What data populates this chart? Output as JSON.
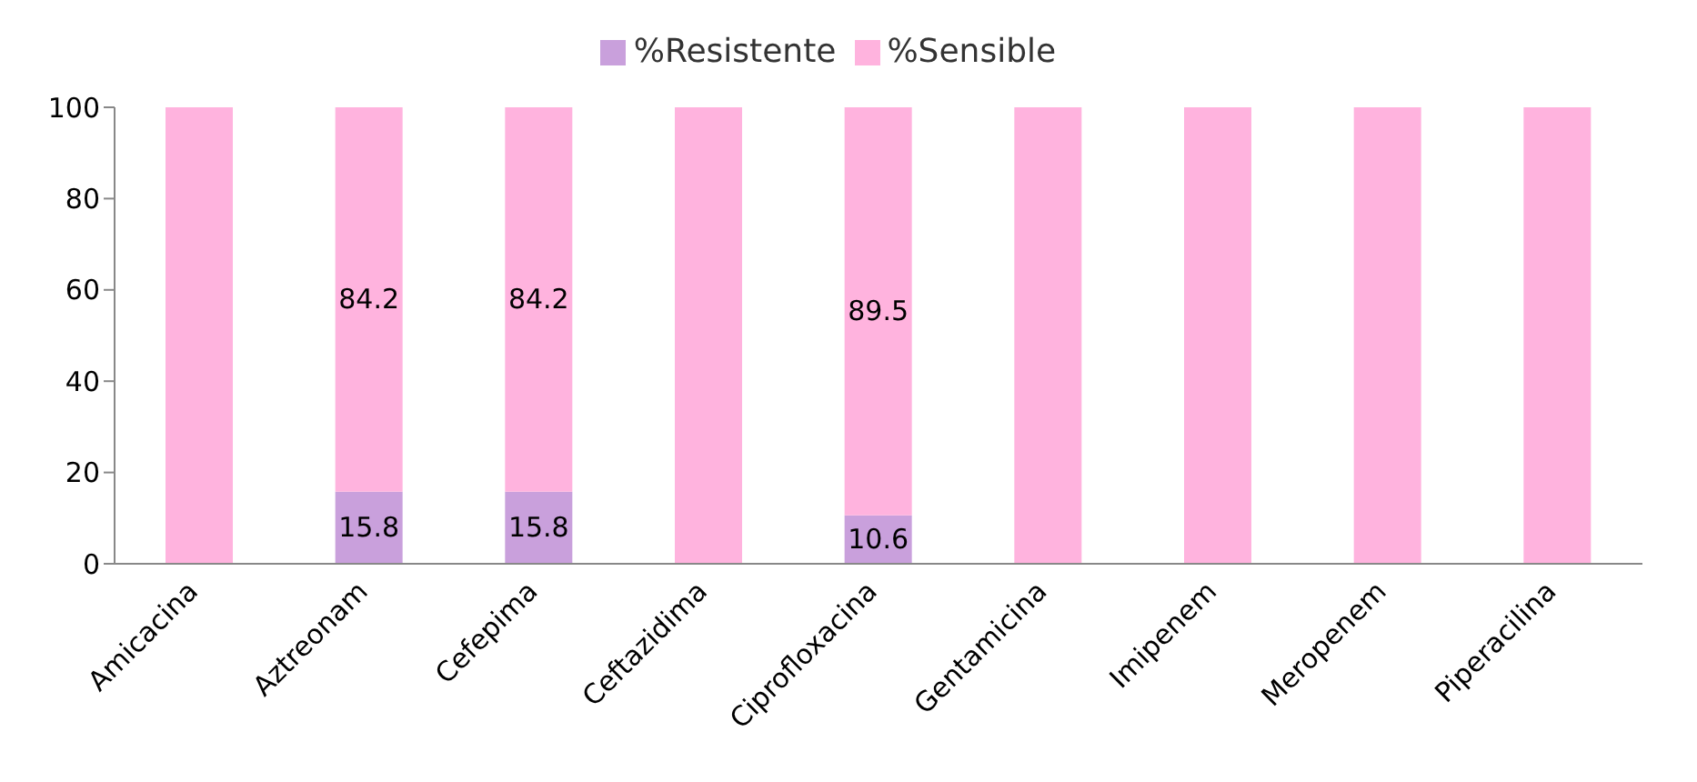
{
  "chart_data": {
    "type": "bar",
    "stacked": true,
    "categories": [
      "Amicacina",
      "Aztreonam",
      "Cefepima",
      "Ceftazidima",
      "Ciprofloxacina",
      "Gentamicina",
      "Imipenem",
      "Meropenem",
      "Piperacilina"
    ],
    "series": [
      {
        "name": "%Resistente",
        "color": "#c9a0dc",
        "values": [
          0,
          15.8,
          15.8,
          0,
          10.6,
          0,
          0,
          0,
          0
        ],
        "value_labels": [
          null,
          "15.8",
          "15.8",
          null,
          "10.6",
          null,
          null,
          null,
          null
        ]
      },
      {
        "name": "%Sensible",
        "color": "#ffb3de",
        "values": [
          100,
          84.2,
          84.2,
          100,
          89.5,
          100,
          100,
          100,
          100
        ],
        "value_labels": [
          null,
          "84.2",
          "84.2",
          null,
          "89.5",
          null,
          null,
          null,
          null
        ]
      }
    ],
    "ylim": [
      0,
      100
    ],
    "yticks": [
      0,
      20,
      40,
      60,
      80,
      100
    ],
    "grid": false,
    "legend": "top"
  }
}
